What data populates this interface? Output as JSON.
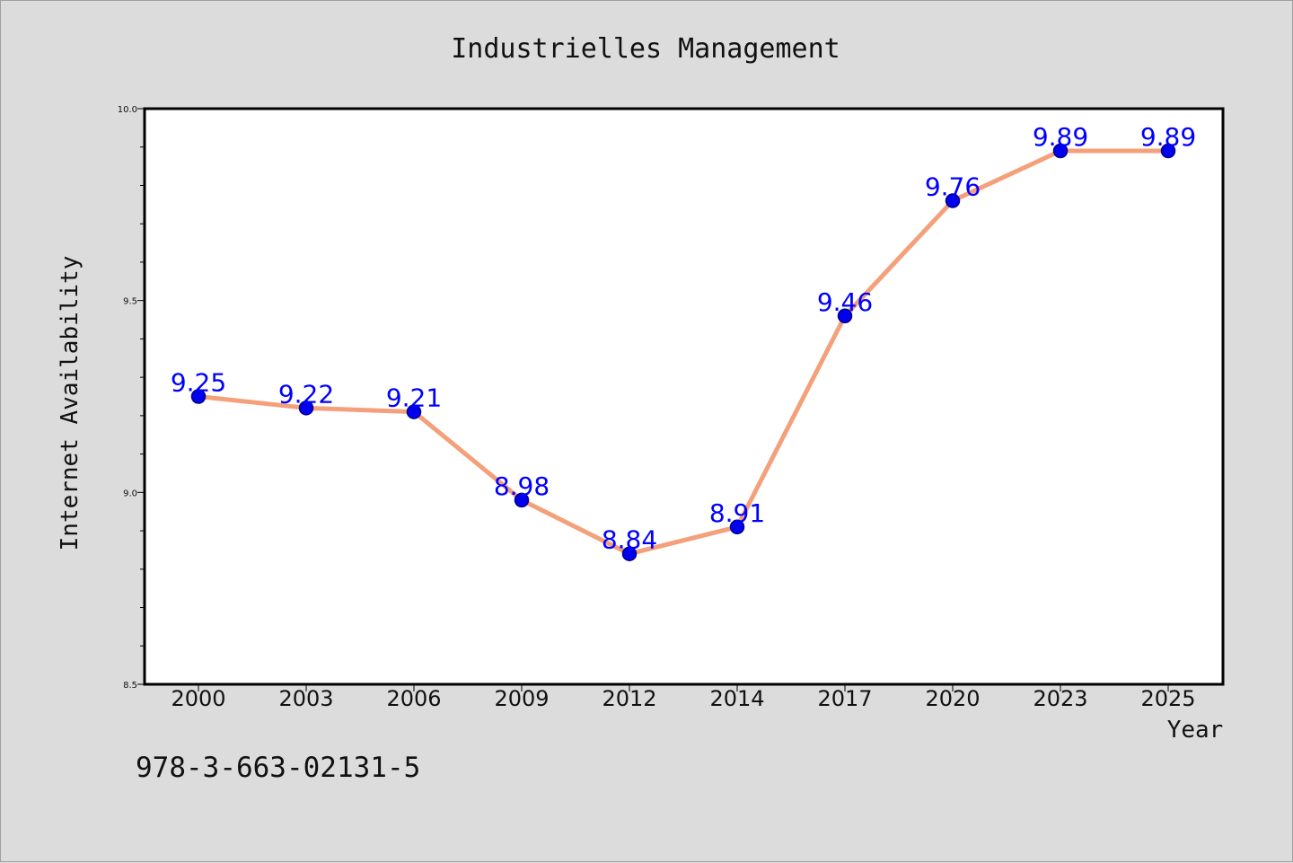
{
  "footnote": "978-3-663-02131-5",
  "chart_data": {
    "type": "line",
    "title": "Industrielles Management",
    "xlabel": "Year",
    "ylabel": "Internet Availability",
    "categories": [
      "2000",
      "2003",
      "2006",
      "2009",
      "2012",
      "2014",
      "2017",
      "2020",
      "2023",
      "2025"
    ],
    "values": [
      9.25,
      9.22,
      9.21,
      8.98,
      8.84,
      8.91,
      9.46,
      9.76,
      9.89,
      9.89
    ],
    "data_labels": [
      "9.25",
      "9.22",
      "9.21",
      "8.98",
      "8.84",
      "8.91",
      "9.46",
      "9.76",
      "9.89",
      "9.89"
    ],
    "ylim": [
      8.5,
      10.0
    ],
    "yticks": [
      "8.5",
      "9.0",
      "9.5",
      "10.0"
    ],
    "grid": false,
    "legend": "none",
    "colors": {
      "line": "#f4a07a",
      "marker_fill": "#0000ee",
      "marker_edge": "#00008b",
      "data_label": "#0000ff",
      "background": "#dcdcdc",
      "plot_background": "#ffffff"
    }
  }
}
